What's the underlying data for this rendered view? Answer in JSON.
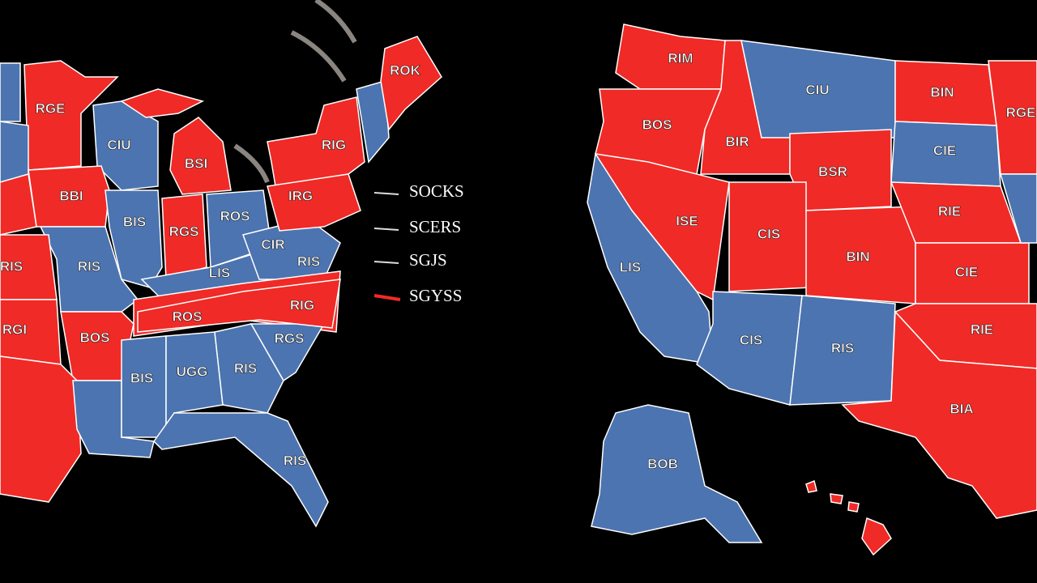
{
  "left_map": {
    "labels": [
      "ROK",
      "RGE",
      "CIU",
      "RIG",
      "BSI",
      "BBI",
      "IRG",
      "BIS",
      "RGS",
      "ROS",
      "CIR",
      "RIS",
      "RIS",
      "RIS",
      "LIS",
      "ROS",
      "RIG",
      "RGI",
      "BOS",
      "RGS",
      "BIS",
      "UGG",
      "RIS",
      "RIS"
    ]
  },
  "legend": {
    "items": [
      "SOCKS",
      "SCERS",
      "SGJS",
      "SGYSS"
    ]
  },
  "right_map": {
    "labels": [
      "RIM",
      "CIU",
      "BIN",
      "RGE",
      "BOS",
      "BIR",
      "CIE",
      "BSR",
      "RIE",
      "ISE",
      "CIS",
      "BIN",
      "CIE",
      "LIS",
      "RIE",
      "CIS",
      "RIS",
      "BIA",
      "BOB"
    ]
  }
}
